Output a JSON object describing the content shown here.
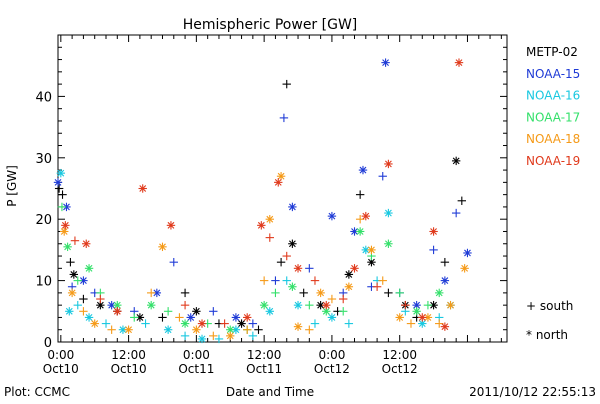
{
  "chart_data": {
    "type": "scatter",
    "title": "Hemispheric Power [GW]",
    "xlabel": "Date and Time",
    "ylabel": "P [GW]",
    "xlim": [
      -0.5,
      79
    ],
    "ylim": [
      0,
      50
    ],
    "y_ticks": [
      0,
      10,
      20,
      30,
      40
    ],
    "x_ticks": [
      {
        "x": 0,
        "time": "0:00",
        "date": "Oct10"
      },
      {
        "x": 12,
        "time": "12:00",
        "date": "Oct10"
      },
      {
        "x": 24,
        "time": "0:00",
        "date": "Oct11"
      },
      {
        "x": 36,
        "time": "12:00",
        "date": "Oct11"
      },
      {
        "x": 48,
        "time": "0:00",
        "date": "Oct12"
      },
      {
        "x": 60,
        "time": "12:00",
        "date": "Oct12"
      }
    ],
    "marker_legend": [
      {
        "symbol": "+",
        "label": "south"
      },
      {
        "symbol": "*",
        "label": "north"
      }
    ],
    "series": [
      {
        "name": "METP-02",
        "color": "#000000",
        "points": [
          {
            "x": -0.3,
            "y": 25,
            "hemi": "south"
          },
          {
            "x": 0.3,
            "y": 24,
            "hemi": "south"
          },
          {
            "x": 1.7,
            "y": 13,
            "hemi": "south"
          },
          {
            "x": 2.3,
            "y": 11,
            "hemi": "north"
          },
          {
            "x": 4,
            "y": 7,
            "hemi": "south"
          },
          {
            "x": 7,
            "y": 6,
            "hemi": "north"
          },
          {
            "x": 10,
            "y": 5,
            "hemi": "south"
          },
          {
            "x": 14,
            "y": 4,
            "hemi": "north"
          },
          {
            "x": 18,
            "y": 4,
            "hemi": "south"
          },
          {
            "x": 22,
            "y": 8,
            "hemi": "south"
          },
          {
            "x": 24,
            "y": 5,
            "hemi": "north"
          },
          {
            "x": 28,
            "y": 3,
            "hemi": "south"
          },
          {
            "x": 32,
            "y": 3,
            "hemi": "north"
          },
          {
            "x": 35,
            "y": 2,
            "hemi": "south"
          },
          {
            "x": 39,
            "y": 13,
            "hemi": "south"
          },
          {
            "x": 40,
            "y": 42,
            "hemi": "south"
          },
          {
            "x": 41,
            "y": 16,
            "hemi": "north"
          },
          {
            "x": 43,
            "y": 8,
            "hemi": "south"
          },
          {
            "x": 46,
            "y": 6,
            "hemi": "north"
          },
          {
            "x": 49,
            "y": 5,
            "hemi": "south"
          },
          {
            "x": 51,
            "y": 11,
            "hemi": "north"
          },
          {
            "x": 53,
            "y": 24,
            "hemi": "south"
          },
          {
            "x": 55,
            "y": 13,
            "hemi": "north"
          },
          {
            "x": 58,
            "y": 8,
            "hemi": "south"
          },
          {
            "x": 61,
            "y": 6,
            "hemi": "north"
          },
          {
            "x": 63,
            "y": 4,
            "hemi": "south"
          },
          {
            "x": 66,
            "y": 6,
            "hemi": "north"
          },
          {
            "x": 68,
            "y": 13,
            "hemi": "south"
          },
          {
            "x": 70,
            "y": 29.5,
            "hemi": "north"
          },
          {
            "x": 71,
            "y": 23,
            "hemi": "south"
          }
        ]
      },
      {
        "name": "NOAA-15",
        "color": "#1f3bd6",
        "points": [
          {
            "x": -0.5,
            "y": 26,
            "hemi": "north"
          },
          {
            "x": 1,
            "y": 22,
            "hemi": "north"
          },
          {
            "x": 2,
            "y": 9,
            "hemi": "south"
          },
          {
            "x": 4,
            "y": 10,
            "hemi": "north"
          },
          {
            "x": 6,
            "y": 8,
            "hemi": "south"
          },
          {
            "x": 9,
            "y": 6,
            "hemi": "north"
          },
          {
            "x": 13,
            "y": 5,
            "hemi": "south"
          },
          {
            "x": 17,
            "y": 8,
            "hemi": "north"
          },
          {
            "x": 20,
            "y": 13,
            "hemi": "south"
          },
          {
            "x": 23,
            "y": 4,
            "hemi": "north"
          },
          {
            "x": 27,
            "y": 5,
            "hemi": "south"
          },
          {
            "x": 31,
            "y": 4,
            "hemi": "north"
          },
          {
            "x": 34,
            "y": 3,
            "hemi": "south"
          },
          {
            "x": 38,
            "y": 10,
            "hemi": "south"
          },
          {
            "x": 39.5,
            "y": 36.5,
            "hemi": "south"
          },
          {
            "x": 41,
            "y": 22,
            "hemi": "north"
          },
          {
            "x": 44,
            "y": 12,
            "hemi": "south"
          },
          {
            "x": 48,
            "y": 20.5,
            "hemi": "north"
          },
          {
            "x": 50,
            "y": 8,
            "hemi": "south"
          },
          {
            "x": 52,
            "y": 18,
            "hemi": "north"
          },
          {
            "x": 53.5,
            "y": 28,
            "hemi": "north"
          },
          {
            "x": 55,
            "y": 9,
            "hemi": "south"
          },
          {
            "x": 57,
            "y": 27,
            "hemi": "south"
          },
          {
            "x": 57.5,
            "y": 45.5,
            "hemi": "north"
          },
          {
            "x": 60,
            "y": 8,
            "hemi": "south"
          },
          {
            "x": 63,
            "y": 6,
            "hemi": "north"
          },
          {
            "x": 66,
            "y": 15,
            "hemi": "south"
          },
          {
            "x": 68,
            "y": 10,
            "hemi": "north"
          },
          {
            "x": 70,
            "y": 21,
            "hemi": "south"
          },
          {
            "x": 72,
            "y": 14.5,
            "hemi": "north"
          }
        ]
      },
      {
        "name": "NOAA-16",
        "color": "#18c8e0",
        "points": [
          {
            "x": 0,
            "y": 27.5,
            "hemi": "north"
          },
          {
            "x": 1.5,
            "y": 5,
            "hemi": "north"
          },
          {
            "x": 3,
            "y": 6,
            "hemi": "south"
          },
          {
            "x": 5,
            "y": 4,
            "hemi": "north"
          },
          {
            "x": 8,
            "y": 3,
            "hemi": "south"
          },
          {
            "x": 11,
            "y": 2,
            "hemi": "north"
          },
          {
            "x": 15,
            "y": 3,
            "hemi": "south"
          },
          {
            "x": 19,
            "y": 2,
            "hemi": "north"
          },
          {
            "x": 22,
            "y": 1,
            "hemi": "south"
          },
          {
            "x": 25,
            "y": 0.5,
            "hemi": "north"
          },
          {
            "x": 28,
            "y": 0.5,
            "hemi": "south"
          },
          {
            "x": 31,
            "y": 2,
            "hemi": "north"
          },
          {
            "x": 34,
            "y": 1,
            "hemi": "south"
          },
          {
            "x": 37,
            "y": 5,
            "hemi": "north"
          },
          {
            "x": 40,
            "y": 10,
            "hemi": "south"
          },
          {
            "x": 42,
            "y": 6,
            "hemi": "north"
          },
          {
            "x": 45,
            "y": 3,
            "hemi": "south"
          },
          {
            "x": 48,
            "y": 4,
            "hemi": "north"
          },
          {
            "x": 51,
            "y": 3,
            "hemi": "south"
          },
          {
            "x": 54,
            "y": 15,
            "hemi": "north"
          },
          {
            "x": 56,
            "y": 10,
            "hemi": "south"
          },
          {
            "x": 58,
            "y": 21,
            "hemi": "north"
          },
          {
            "x": 61,
            "y": 5,
            "hemi": "south"
          },
          {
            "x": 64,
            "y": 3,
            "hemi": "north"
          },
          {
            "x": 67,
            "y": 4,
            "hemi": "south"
          },
          {
            "x": 69,
            "y": 6,
            "hemi": "north"
          }
        ]
      },
      {
        "name": "NOAA-17",
        "color": "#33e06a",
        "points": [
          {
            "x": 0.2,
            "y": 22,
            "hemi": "south"
          },
          {
            "x": 1.2,
            "y": 15.5,
            "hemi": "north"
          },
          {
            "x": 3,
            "y": 10,
            "hemi": "south"
          },
          {
            "x": 5,
            "y": 12,
            "hemi": "north"
          },
          {
            "x": 7,
            "y": 8,
            "hemi": "south"
          },
          {
            "x": 10,
            "y": 6,
            "hemi": "north"
          },
          {
            "x": 13,
            "y": 4,
            "hemi": "south"
          },
          {
            "x": 16,
            "y": 6,
            "hemi": "north"
          },
          {
            "x": 19,
            "y": 5,
            "hemi": "south"
          },
          {
            "x": 22,
            "y": 3,
            "hemi": "north"
          },
          {
            "x": 26,
            "y": 3,
            "hemi": "south"
          },
          {
            "x": 30,
            "y": 2,
            "hemi": "north"
          },
          {
            "x": 33,
            "y": 2,
            "hemi": "south"
          },
          {
            "x": 36,
            "y": 6,
            "hemi": "north"
          },
          {
            "x": 38,
            "y": 8,
            "hemi": "south"
          },
          {
            "x": 41,
            "y": 9,
            "hemi": "north"
          },
          {
            "x": 44,
            "y": 6,
            "hemi": "south"
          },
          {
            "x": 47,
            "y": 5,
            "hemi": "north"
          },
          {
            "x": 50,
            "y": 5,
            "hemi": "south"
          },
          {
            "x": 53,
            "y": 18,
            "hemi": "north"
          },
          {
            "x": 55,
            "y": 14,
            "hemi": "south"
          },
          {
            "x": 58,
            "y": 16,
            "hemi": "north"
          },
          {
            "x": 60,
            "y": 8,
            "hemi": "south"
          },
          {
            "x": 63,
            "y": 5,
            "hemi": "north"
          },
          {
            "x": 65,
            "y": 6,
            "hemi": "south"
          },
          {
            "x": 67,
            "y": 8,
            "hemi": "north"
          }
        ]
      },
      {
        "name": "NOAA-18",
        "color": "#f59a18",
        "points": [
          {
            "x": 0.6,
            "y": 18,
            "hemi": "north"
          },
          {
            "x": 2,
            "y": 8,
            "hemi": "north"
          },
          {
            "x": 4,
            "y": 5,
            "hemi": "south"
          },
          {
            "x": 6,
            "y": 3,
            "hemi": "north"
          },
          {
            "x": 9,
            "y": 2,
            "hemi": "south"
          },
          {
            "x": 12,
            "y": 2,
            "hemi": "north"
          },
          {
            "x": 16,
            "y": 8,
            "hemi": "south"
          },
          {
            "x": 18,
            "y": 15.5,
            "hemi": "north"
          },
          {
            "x": 21,
            "y": 4,
            "hemi": "south"
          },
          {
            "x": 24,
            "y": 2,
            "hemi": "north"
          },
          {
            "x": 27,
            "y": 1,
            "hemi": "south"
          },
          {
            "x": 30,
            "y": 1,
            "hemi": "north"
          },
          {
            "x": 33,
            "y": 2,
            "hemi": "south"
          },
          {
            "x": 36,
            "y": 10,
            "hemi": "south"
          },
          {
            "x": 37,
            "y": 20,
            "hemi": "north"
          },
          {
            "x": 39,
            "y": 27,
            "hemi": "north"
          },
          {
            "x": 42,
            "y": 2.5,
            "hemi": "north"
          },
          {
            "x": 44,
            "y": 2,
            "hemi": "south"
          },
          {
            "x": 46,
            "y": 8,
            "hemi": "north"
          },
          {
            "x": 48,
            "y": 7,
            "hemi": "south"
          },
          {
            "x": 51,
            "y": 9,
            "hemi": "north"
          },
          {
            "x": 53,
            "y": 20,
            "hemi": "south"
          },
          {
            "x": 55,
            "y": 15,
            "hemi": "north"
          },
          {
            "x": 57,
            "y": 10,
            "hemi": "south"
          },
          {
            "x": 60,
            "y": 4,
            "hemi": "north"
          },
          {
            "x": 62,
            "y": 3,
            "hemi": "south"
          },
          {
            "x": 65,
            "y": 4,
            "hemi": "north"
          },
          {
            "x": 67,
            "y": 3,
            "hemi": "south"
          },
          {
            "x": 69,
            "y": 6,
            "hemi": "north"
          },
          {
            "x": 71.5,
            "y": 12,
            "hemi": "north"
          }
        ]
      },
      {
        "name": "NOAA-19",
        "color": "#e03a1c",
        "points": [
          {
            "x": 0.8,
            "y": 19,
            "hemi": "north"
          },
          {
            "x": 2.5,
            "y": 16.5,
            "hemi": "south"
          },
          {
            "x": 4.5,
            "y": 16,
            "hemi": "north"
          },
          {
            "x": 7,
            "y": 7,
            "hemi": "south"
          },
          {
            "x": 10,
            "y": 5,
            "hemi": "north"
          },
          {
            "x": 14.5,
            "y": 25,
            "hemi": "north"
          },
          {
            "x": 19.5,
            "y": 19,
            "hemi": "north"
          },
          {
            "x": 22,
            "y": 6,
            "hemi": "south"
          },
          {
            "x": 25,
            "y": 3,
            "hemi": "north"
          },
          {
            "x": 29,
            "y": 3,
            "hemi": "south"
          },
          {
            "x": 33,
            "y": 4,
            "hemi": "north"
          },
          {
            "x": 35.5,
            "y": 19,
            "hemi": "north"
          },
          {
            "x": 37,
            "y": 17,
            "hemi": "south"
          },
          {
            "x": 38.5,
            "y": 26,
            "hemi": "north"
          },
          {
            "x": 40,
            "y": 14,
            "hemi": "south"
          },
          {
            "x": 42,
            "y": 12,
            "hemi": "north"
          },
          {
            "x": 45,
            "y": 10,
            "hemi": "south"
          },
          {
            "x": 47,
            "y": 6,
            "hemi": "north"
          },
          {
            "x": 50,
            "y": 7,
            "hemi": "south"
          },
          {
            "x": 52,
            "y": 12,
            "hemi": "north"
          },
          {
            "x": 54,
            "y": 20.5,
            "hemi": "north"
          },
          {
            "x": 56,
            "y": 9,
            "hemi": "south"
          },
          {
            "x": 58,
            "y": 29,
            "hemi": "north"
          },
          {
            "x": 61,
            "y": 6,
            "hemi": "south"
          },
          {
            "x": 64,
            "y": 4,
            "hemi": "north"
          },
          {
            "x": 66,
            "y": 18,
            "hemi": "north"
          },
          {
            "x": 68,
            "y": 2.5,
            "hemi": "north"
          },
          {
            "x": 70.5,
            "y": 45.5,
            "hemi": "north"
          }
        ]
      }
    ]
  },
  "footer": {
    "left": "Plot: CCMC",
    "right": "2011/10/12 22:55:13"
  }
}
